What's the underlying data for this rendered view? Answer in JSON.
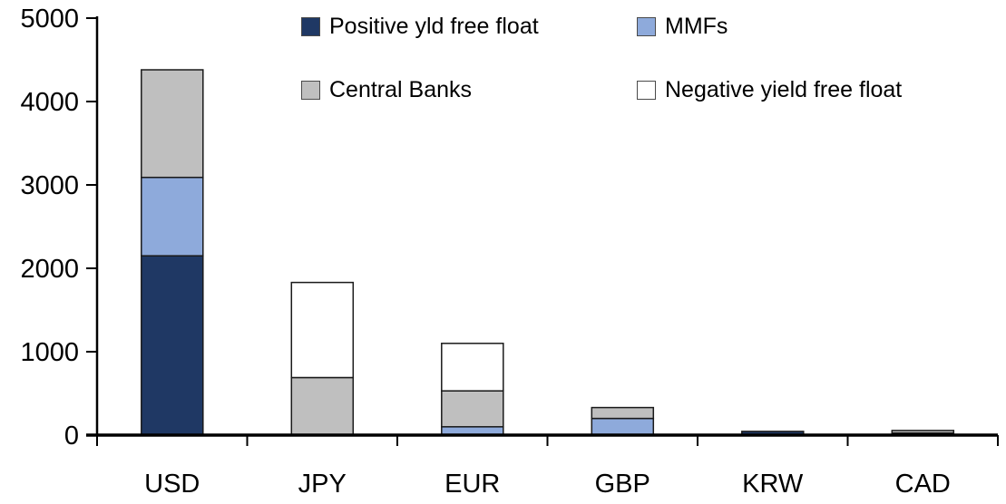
{
  "chart_data": {
    "type": "bar",
    "stacked": true,
    "title": "",
    "xlabel": "",
    "ylabel": "",
    "categories": [
      "USD",
      "JPY",
      "EUR",
      "GBP",
      "KRW",
      "CAD"
    ],
    "series": [
      {
        "name": "Positive yld free float",
        "color": "#1F3864",
        "values": [
          2150,
          0,
          0,
          0,
          45,
          25
        ]
      },
      {
        "name": "MMFs",
        "color": "#8EAADB",
        "values": [
          940,
          0,
          100,
          200,
          0,
          0
        ]
      },
      {
        "name": "Central Banks",
        "color": "#BFBFBF",
        "values": [
          1290,
          690,
          430,
          130,
          0,
          30
        ]
      },
      {
        "name": "Negative yield free float",
        "color": "#FFFFFF",
        "values": [
          0,
          1140,
          570,
          0,
          0,
          0
        ]
      }
    ],
    "totals": [
      4380,
      1830,
      1100,
      330,
      45,
      55
    ],
    "ylim": [
      0,
      5000
    ],
    "yticks": [
      "0",
      "1000",
      "2000",
      "3000",
      "4000",
      "5000"
    ],
    "grid": false,
    "legend_position": "top-two-column",
    "axis_color": "#000000",
    "bar_border_color": "#1a1a1a"
  }
}
